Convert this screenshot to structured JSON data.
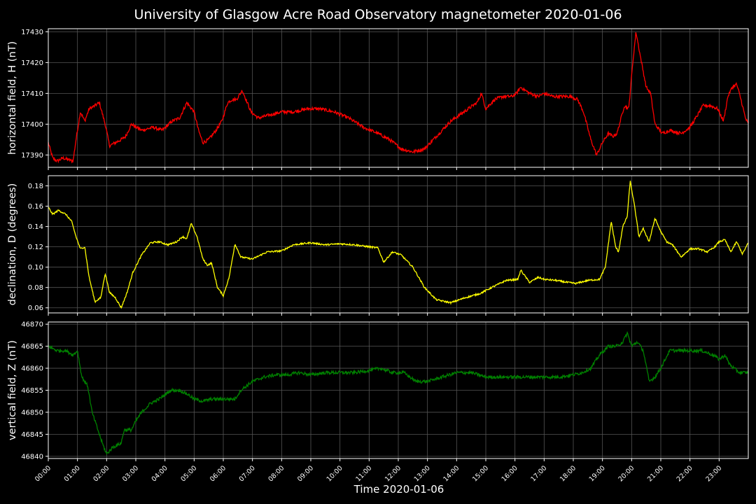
{
  "figure": {
    "title": "University of Glasgow Acre Road Observatory magnetometer 2020-01-06",
    "xlabel": "Time 2020-01-06",
    "background": "#000000",
    "grid_color": "#555555"
  },
  "chart_data": [
    {
      "type": "line",
      "ylabel": "horizontal field, H (nT)",
      "color": "#ff0000",
      "ylim": [
        17386,
        17431
      ],
      "yticks": [
        17390,
        17400,
        17410,
        17420,
        17430
      ],
      "xlim": [
        0,
        24
      ],
      "grid": true,
      "x_hours": [
        0,
        0.15,
        0.3,
        0.5,
        0.85,
        0.95,
        1.1,
        1.25,
        1.4,
        1.6,
        1.75,
        1.95,
        2.1,
        2.3,
        2.5,
        2.65,
        2.85,
        3.2,
        3.6,
        3.9,
        4.25,
        4.5,
        4.75,
        5.0,
        5.15,
        5.3,
        5.5,
        5.75,
        5.95,
        6.15,
        6.3,
        6.45,
        6.65,
        6.95,
        7.2,
        7.6,
        8.0,
        8.4,
        8.9,
        9.3,
        9.8,
        10.3,
        10.8,
        11.3,
        11.7,
        12.1,
        12.5,
        12.9,
        13.2,
        13.5,
        13.8,
        14.1,
        14.4,
        14.7,
        14.85,
        15.0,
        15.3,
        15.6,
        15.9,
        16.05,
        16.2,
        16.5,
        16.8,
        17.0,
        17.3,
        17.6,
        17.9,
        18.15,
        18.35,
        18.6,
        18.8,
        19.0,
        19.2,
        19.35,
        19.5,
        19.75,
        19.9,
        20.05,
        20.15,
        20.3,
        20.5,
        20.65,
        20.8,
        21.05,
        21.3,
        21.7,
        22.0,
        22.2,
        22.45,
        22.7,
        22.95,
        23.15,
        23.3,
        23.45,
        23.6,
        23.75,
        23.9,
        24.0
      ],
      "y_values": [
        17394,
        17389,
        17388,
        17389,
        17388,
        17395,
        17404,
        17401,
        17405,
        17406,
        17407,
        17400,
        17393,
        17394,
        17395,
        17396,
        17400,
        17398,
        17399,
        17398,
        17401,
        17402,
        17407,
        17404,
        17398,
        17394,
        17395,
        17398,
        17401,
        17407,
        17408,
        17408,
        17411,
        17404,
        17402,
        17403,
        17404,
        17404,
        17405,
        17405,
        17404,
        17402,
        17399,
        17397,
        17395,
        17392,
        17391,
        17392,
        17395,
        17398,
        17401,
        17403,
        17405,
        17407,
        17410,
        17405,
        17408,
        17409,
        17409,
        17410,
        17412,
        17410,
        17409,
        17410,
        17409,
        17409,
        17409,
        17408,
        17404,
        17395,
        17390,
        17394,
        17397,
        17396,
        17397,
        17406,
        17405,
        17421,
        17430,
        17422,
        17412,
        17410,
        17400,
        17397,
        17398,
        17397,
        17399,
        17402,
        17406,
        17406,
        17405,
        17401,
        17409,
        17412,
        17413,
        17408,
        17402,
        17400
      ]
    },
    {
      "type": "line",
      "ylabel": "declination, D (degrees)",
      "color": "#ffff00",
      "ylim": [
        0.055,
        0.19
      ],
      "yticks": [
        0.06,
        0.08,
        0.1,
        0.12,
        0.14,
        0.16,
        0.18
      ],
      "xlim": [
        0,
        24
      ],
      "grid": true,
      "x_hours": [
        0,
        0.15,
        0.35,
        0.6,
        0.8,
        0.95,
        1.1,
        1.25,
        1.4,
        1.6,
        1.8,
        1.95,
        2.1,
        2.3,
        2.5,
        2.7,
        2.9,
        3.2,
        3.5,
        3.8,
        4.1,
        4.4,
        4.6,
        4.75,
        4.9,
        5.1,
        5.3,
        5.45,
        5.6,
        5.8,
        6.0,
        6.2,
        6.4,
        6.6,
        7.0,
        7.5,
        8.0,
        8.4,
        9.0,
        9.5,
        10.0,
        10.5,
        11.0,
        11.3,
        11.5,
        11.8,
        12.1,
        12.5,
        12.9,
        13.3,
        13.8,
        14.3,
        14.8,
        15.2,
        15.7,
        16.1,
        16.2,
        16.5,
        16.8,
        17.0,
        17.4,
        17.8,
        18.1,
        18.5,
        18.9,
        19.1,
        19.3,
        19.45,
        19.55,
        19.7,
        19.85,
        19.95,
        20.1,
        20.25,
        20.4,
        20.6,
        20.8,
        21.0,
        21.2,
        21.4,
        21.7,
        22.0,
        22.3,
        22.6,
        22.85,
        23.0,
        23.2,
        23.4,
        23.6,
        23.8,
        24.0
      ],
      "y_values": [
        0.159,
        0.152,
        0.156,
        0.152,
        0.145,
        0.13,
        0.118,
        0.12,
        0.09,
        0.066,
        0.07,
        0.094,
        0.075,
        0.07,
        0.06,
        0.075,
        0.095,
        0.112,
        0.124,
        0.125,
        0.122,
        0.125,
        0.13,
        0.128,
        0.143,
        0.13,
        0.108,
        0.102,
        0.104,
        0.08,
        0.072,
        0.09,
        0.123,
        0.11,
        0.108,
        0.115,
        0.116,
        0.122,
        0.124,
        0.122,
        0.123,
        0.122,
        0.12,
        0.119,
        0.105,
        0.115,
        0.112,
        0.1,
        0.08,
        0.068,
        0.065,
        0.07,
        0.074,
        0.08,
        0.087,
        0.088,
        0.097,
        0.085,
        0.09,
        0.088,
        0.087,
        0.085,
        0.084,
        0.087,
        0.088,
        0.1,
        0.145,
        0.12,
        0.115,
        0.14,
        0.15,
        0.185,
        0.16,
        0.13,
        0.138,
        0.125,
        0.148,
        0.135,
        0.125,
        0.122,
        0.11,
        0.118,
        0.118,
        0.115,
        0.12,
        0.125,
        0.127,
        0.115,
        0.125,
        0.113,
        0.124
      ]
    },
    {
      "type": "line",
      "ylabel": "vertical field, Z (nT)",
      "color": "#008000",
      "ylim": [
        46839.5,
        46870.5
      ],
      "yticks": [
        46840,
        46845,
        46850,
        46855,
        46860,
        46865,
        46870
      ],
      "xlim": [
        0,
        24
      ],
      "grid": true,
      "x_hours": [
        0,
        0.3,
        0.6,
        0.85,
        1.0,
        1.15,
        1.35,
        1.5,
        1.65,
        1.85,
        2.0,
        2.2,
        2.5,
        2.6,
        2.85,
        3.0,
        3.2,
        3.5,
        3.8,
        4.2,
        4.5,
        4.8,
        5.0,
        5.3,
        5.6,
        5.9,
        6.2,
        6.4,
        6.6,
        7.0,
        7.4,
        7.8,
        8.2,
        8.6,
        9.0,
        9.5,
        10.0,
        10.5,
        11.0,
        11.4,
        11.8,
        12.2,
        12.6,
        13.0,
        13.5,
        14.0,
        14.5,
        15.0,
        15.5,
        16.0,
        16.5,
        17.0,
        17.5,
        18.0,
        18.3,
        18.6,
        18.9,
        19.2,
        19.5,
        19.7,
        19.85,
        20.0,
        20.2,
        20.4,
        20.6,
        20.8,
        21.0,
        21.3,
        21.6,
        22.0,
        22.4,
        22.8,
        23.0,
        23.2,
        23.35,
        23.5,
        23.7,
        24.0
      ],
      "y_values": [
        46865,
        46864,
        46864,
        46863,
        46864,
        46858,
        46856,
        46850,
        46847,
        46843,
        46840.5,
        46842,
        46843,
        46846,
        46846,
        46848,
        46850,
        46852,
        46853,
        46855,
        46855,
        46854,
        46853,
        46852.5,
        46853,
        46853,
        46853,
        46853,
        46855,
        46857,
        46858,
        46858.5,
        46858.5,
        46859,
        46858.5,
        46859,
        46859,
        46859,
        46859.5,
        46860,
        46859,
        46859,
        46857,
        46857,
        46858,
        46859,
        46859,
        46858,
        46858,
        46858,
        46858,
        46858,
        46858,
        46858.5,
        46859,
        46860,
        46863,
        46865,
        46865,
        46866,
        46868,
        46865,
        46866,
        46864,
        46857,
        46858,
        46860,
        46864,
        46864,
        46864,
        46864,
        46863,
        46862,
        46863,
        46861,
        46860,
        46859,
        46859
      ]
    }
  ],
  "x_ticks": [
    "00:00",
    "01:00",
    "02:00",
    "03:00",
    "04:00",
    "05:00",
    "06:00",
    "07:00",
    "08:00",
    "09:00",
    "10:00",
    "11:00",
    "12:00",
    "13:00",
    "14:00",
    "15:00",
    "16:00",
    "17:00",
    "18:00",
    "19:00",
    "20:00",
    "21:00",
    "22:00",
    "23:00"
  ]
}
